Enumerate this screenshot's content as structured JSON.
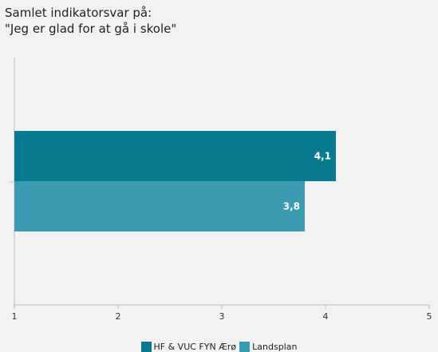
{
  "chart_data": {
    "type": "bar",
    "orientation": "horizontal",
    "title_lines": [
      "Samlet indikatorsvar på:",
      "\"Jeg er glad for at gå i skole\""
    ],
    "categories": [
      ""
    ],
    "series": [
      {
        "name": "HF & VUC FYN Ærø",
        "values": [
          4.1
        ],
        "labels": [
          "4,1"
        ],
        "color": "#077a8f"
      },
      {
        "name": "Landsplan",
        "values": [
          3.8
        ],
        "labels": [
          "3,8"
        ],
        "color": "#3b9bb1"
      }
    ],
    "xlim": [
      1,
      5
    ],
    "xticks": [
      1,
      2,
      3,
      4,
      5
    ],
    "xtick_labels": [
      "1",
      "2",
      "3",
      "4",
      "5"
    ],
    "legend_position": "bottom",
    "grid": false
  }
}
